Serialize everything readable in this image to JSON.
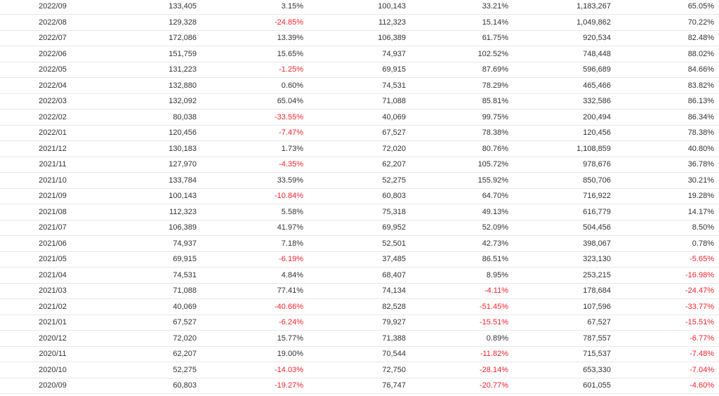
{
  "table": {
    "negative_color": "#f5222d",
    "text_color": "#333333",
    "rows": [
      [
        "2022/09",
        "133,405",
        "3.15%",
        "100,143",
        "33.21%",
        "1,183,267",
        "65.05%"
      ],
      [
        "2022/08",
        "129,328",
        "-24.85%",
        "112,323",
        "15.14%",
        "1,049,862",
        "70.22%"
      ],
      [
        "2022/07",
        "172,086",
        "13.39%",
        "106,389",
        "61.75%",
        "920,534",
        "82.48%"
      ],
      [
        "2022/06",
        "151,759",
        "15.65%",
        "74,937",
        "102.52%",
        "748,448",
        "88.02%"
      ],
      [
        "2022/05",
        "131,223",
        "-1.25%",
        "69,915",
        "87.69%",
        "596,689",
        "84.66%"
      ],
      [
        "2022/04",
        "132,880",
        "0.60%",
        "74,531",
        "78.29%",
        "465,466",
        "83.82%"
      ],
      [
        "2022/03",
        "132,092",
        "65.04%",
        "71,088",
        "85.81%",
        "332,586",
        "86.13%"
      ],
      [
        "2022/02",
        "80,038",
        "-33.55%",
        "40,069",
        "99.75%",
        "200,494",
        "86.34%"
      ],
      [
        "2022/01",
        "120,456",
        "-7.47%",
        "67,527",
        "78.38%",
        "120,456",
        "78.38%"
      ],
      [
        "2021/12",
        "130,183",
        "1.73%",
        "72,020",
        "80.76%",
        "1,108,859",
        "40.80%"
      ],
      [
        "2021/11",
        "127,970",
        "-4.35%",
        "62,207",
        "105.72%",
        "978,676",
        "36.78%"
      ],
      [
        "2021/10",
        "133,784",
        "33.59%",
        "52,275",
        "155.92%",
        "850,706",
        "30.21%"
      ],
      [
        "2021/09",
        "100,143",
        "-10.84%",
        "60,803",
        "64.70%",
        "716,922",
        "19.28%"
      ],
      [
        "2021/08",
        "112,323",
        "5.58%",
        "75,318",
        "49.13%",
        "616,779",
        "14.17%"
      ],
      [
        "2021/07",
        "106,389",
        "41.97%",
        "69,952",
        "52.09%",
        "504,456",
        "8.50%"
      ],
      [
        "2021/06",
        "74,937",
        "7.18%",
        "52,501",
        "42.73%",
        "398,067",
        "0.78%"
      ],
      [
        "2021/05",
        "69,915",
        "-6.19%",
        "37,485",
        "86.51%",
        "323,130",
        "-5.65%"
      ],
      [
        "2021/04",
        "74,531",
        "4.84%",
        "68,407",
        "8.95%",
        "253,215",
        "-16.98%"
      ],
      [
        "2021/03",
        "71,088",
        "77.41%",
        "74,134",
        "-4.11%",
        "178,684",
        "-24.47%"
      ],
      [
        "2021/02",
        "40,069",
        "-40.66%",
        "82,528",
        "-51.45%",
        "107,596",
        "-33.77%"
      ],
      [
        "2021/01",
        "67,527",
        "-6.24%",
        "79,927",
        "-15.51%",
        "67,527",
        "-15.51%"
      ],
      [
        "2020/12",
        "72,020",
        "15.77%",
        "71,388",
        "0.89%",
        "787,557",
        "-6.77%"
      ],
      [
        "2020/11",
        "62,207",
        "19.00%",
        "70,544",
        "-11.82%",
        "715,537",
        "-7.48%"
      ],
      [
        "2020/10",
        "52,275",
        "-14.03%",
        "72,750",
        "-28.14%",
        "653,330",
        "-7.04%"
      ],
      [
        "2020/09",
        "60,803",
        "-19.27%",
        "76,747",
        "-20.77%",
        "601,055",
        "-4.60%"
      ]
    ]
  }
}
